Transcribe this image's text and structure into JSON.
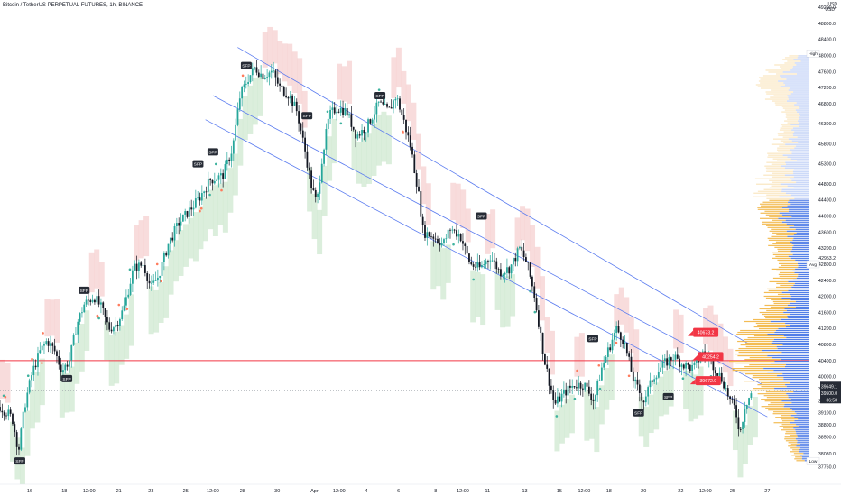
{
  "header": {
    "title": "Bitcoin / TetherUS PERPETUAL FUTURES, 1h, BINANCE",
    "currency_line1": "USD",
    "currency_line2": "USDT"
  },
  "chart_data": {
    "type": "candlestick",
    "symbol": "BTCUSDT.P",
    "exchange": "BINANCE",
    "timeframe": "1h",
    "xlim": [
      0,
      32.7
    ],
    "ylim": [
      37320,
      49380
    ],
    "y_ticks": [
      37760.0,
      38080.0,
      38500.0,
      38800.0,
      39100.0,
      39400.0,
      39700.0,
      40000.0,
      40400.0,
      40800.0,
      41200.0,
      41600.0,
      42000.0,
      42400.0,
      42800.0,
      43200.0,
      43600.0,
      44000.0,
      44400.0,
      44800.0,
      45300.0,
      45800.0,
      46300.0,
      46800.0,
      47200.0,
      47600.0,
      48000.0,
      48400.0,
      48800.0,
      49200.0
    ],
    "y_tick_labels": [
      "37760.0",
      "38080.0",
      "38500.0",
      "38800.0",
      "39100.0",
      "39400.0",
      "39700.0",
      "40000.0",
      "40400.0",
      "40800.0",
      "41200.0",
      "41600.0",
      "42000.0",
      "42400.0",
      "42800.0",
      "43200.0",
      "43600.0",
      "44000.0",
      "44400.0",
      "44800.0",
      "45300.0",
      "45800.0",
      "46300.0",
      "46800.0",
      "47200.0",
      "47600.0",
      "48000.0",
      "48400.0",
      "48800.0",
      "49200.0"
    ],
    "x_ticks": [
      {
        "x": 1.2,
        "label": "16"
      },
      {
        "x": 2.6,
        "label": "18"
      },
      {
        "x": 3.6,
        "label": "12:00"
      },
      {
        "x": 4.8,
        "label": "21"
      },
      {
        "x": 6.1,
        "label": "23"
      },
      {
        "x": 7.5,
        "label": "25"
      },
      {
        "x": 8.6,
        "label": "12:00"
      },
      {
        "x": 9.8,
        "label": "28"
      },
      {
        "x": 11.2,
        "label": "30"
      },
      {
        "x": 12.7,
        "label": "Apr"
      },
      {
        "x": 13.7,
        "label": "12:00"
      },
      {
        "x": 14.8,
        "label": "4"
      },
      {
        "x": 16.1,
        "label": "6"
      },
      {
        "x": 17.6,
        "label": "8"
      },
      {
        "x": 18.7,
        "label": "12:00"
      },
      {
        "x": 19.7,
        "label": "11"
      },
      {
        "x": 21.2,
        "label": "13"
      },
      {
        "x": 22.6,
        "label": "15"
      },
      {
        "x": 23.6,
        "label": "12:00"
      },
      {
        "x": 24.6,
        "label": "18"
      },
      {
        "x": 26.0,
        "label": "20"
      },
      {
        "x": 27.5,
        "label": "22"
      },
      {
        "x": 28.5,
        "label": "12:00"
      },
      {
        "x": 29.6,
        "label": "25"
      },
      {
        "x": 31.0,
        "label": "27"
      }
    ],
    "price_path": [
      [
        0.0,
        39250
      ],
      [
        0.3,
        39100
      ],
      [
        0.5,
        38950
      ],
      [
        0.75,
        38150
      ],
      [
        1.0,
        39300
      ],
      [
        1.3,
        40100
      ],
      [
        1.6,
        40600
      ],
      [
        1.9,
        40900
      ],
      [
        2.2,
        40650
      ],
      [
        2.5,
        40150
      ],
      [
        2.8,
        40400
      ],
      [
        3.1,
        41300
      ],
      [
        3.4,
        41800
      ],
      [
        3.8,
        42000
      ],
      [
        4.1,
        41700
      ],
      [
        4.4,
        41200
      ],
      [
        4.7,
        41300
      ],
      [
        5.0,
        41700
      ],
      [
        5.4,
        42700
      ],
      [
        5.8,
        42800
      ],
      [
        6.1,
        42200
      ],
      [
        6.4,
        42500
      ],
      [
        6.8,
        43300
      ],
      [
        7.2,
        43800
      ],
      [
        7.6,
        44100
      ],
      [
        8.0,
        44400
      ],
      [
        8.5,
        44900
      ],
      [
        9.0,
        45000
      ],
      [
        9.4,
        45700
      ],
      [
        9.7,
        47000
      ],
      [
        10.0,
        47400
      ],
      [
        10.3,
        47700
      ],
      [
        10.6,
        47500
      ],
      [
        11.0,
        47600
      ],
      [
        11.3,
        47200
      ],
      [
        11.7,
        47000
      ],
      [
        12.0,
        46600
      ],
      [
        12.3,
        45700
      ],
      [
        12.6,
        44700
      ],
      [
        12.8,
        44300
      ],
      [
        13.0,
        45400
      ],
      [
        13.3,
        46500
      ],
      [
        13.6,
        46700
      ],
      [
        14.0,
        46600
      ],
      [
        14.4,
        46000
      ],
      [
        14.8,
        46200
      ],
      [
        15.3,
        46800
      ],
      [
        15.7,
        46600
      ],
      [
        16.0,
        47000
      ],
      [
        16.3,
        46400
      ],
      [
        16.6,
        45700
      ],
      [
        16.9,
        44600
      ],
      [
        17.1,
        43600
      ],
      [
        17.5,
        43500
      ],
      [
        17.9,
        43300
      ],
      [
        18.2,
        43700
      ],
      [
        18.6,
        43500
      ],
      [
        19.0,
        42800
      ],
      [
        19.4,
        42700
      ],
      [
        19.8,
        43000
      ],
      [
        20.2,
        42600
      ],
      [
        20.6,
        42700
      ],
      [
        21.0,
        43200
      ],
      [
        21.3,
        42800
      ],
      [
        21.6,
        42000
      ],
      [
        22.0,
        40400
      ],
      [
        22.4,
        39300
      ],
      [
        22.8,
        39600
      ],
      [
        23.2,
        39800
      ],
      [
        23.6,
        39800
      ],
      [
        24.0,
        39400
      ],
      [
        24.3,
        40200
      ],
      [
        24.6,
        40700
      ],
      [
        24.9,
        41200
      ],
      [
        25.2,
        40900
      ],
      [
        25.6,
        39900
      ],
      [
        26.0,
        39400
      ],
      [
        26.4,
        40000
      ],
      [
        26.8,
        40300
      ],
      [
        27.2,
        40500
      ],
      [
        27.6,
        40300
      ],
      [
        28.0,
        40200
      ],
      [
        28.4,
        40600
      ],
      [
        28.8,
        40300
      ],
      [
        29.2,
        39900
      ],
      [
        29.5,
        39400
      ],
      [
        29.7,
        39200
      ],
      [
        29.9,
        38600
      ],
      [
        30.1,
        39300
      ],
      [
        30.4,
        39649
      ]
    ],
    "current_price": 39649.1,
    "current_price_label": "39649.1",
    "secondary_price_label": "39500.0",
    "countdown_label": "36:58",
    "horizontal_level": {
      "price": 40400,
      "color": "#f23645"
    },
    "regression_channel": {
      "color": "#5b7cf0",
      "lines": [
        {
          "from": [
            9.6,
            48200
          ],
          "to": [
            30.3,
            40800
          ]
        },
        {
          "from": [
            8.6,
            47000
          ],
          "to": [
            30.8,
            39800
          ]
        },
        {
          "from": [
            8.3,
            46400
          ],
          "to": [
            31.0,
            39000
          ]
        }
      ]
    },
    "sfp_labels": [
      {
        "x": 0.8,
        "price": 37900,
        "text": "SFP"
      },
      {
        "x": 3.4,
        "price": 42150,
        "text": "SFP"
      },
      {
        "x": 2.7,
        "price": 39950,
        "text": "SFP"
      },
      {
        "x": 9.95,
        "price": 47750,
        "text": "SFP"
      },
      {
        "x": 12.4,
        "price": 46500,
        "text": "SFP"
      },
      {
        "x": 15.35,
        "price": 47000,
        "text": "SFP"
      },
      {
        "x": 8.0,
        "price": 45300,
        "text": "SFP"
      },
      {
        "x": 8.6,
        "price": 45600,
        "text": "SFP"
      },
      {
        "x": 19.45,
        "price": 44000,
        "text": "SFP"
      },
      {
        "x": 23.95,
        "price": 40950,
        "text": "SFP"
      },
      {
        "x": 25.8,
        "price": 39100,
        "text": "SFP"
      },
      {
        "x": 27.0,
        "price": 39500,
        "text": "SFP"
      }
    ],
    "callouts": [
      {
        "x": 28.0,
        "price": 41100,
        "text": "40673.2"
      },
      {
        "x": 28.2,
        "price": 40500,
        "text": "40254.2"
      },
      {
        "x": 28.1,
        "price": 39900,
        "text": "39672.9"
      }
    ],
    "right_labels": [
      {
        "price": 48050,
        "text": "High"
      },
      {
        "price": 42800,
        "text": "Avg"
      },
      {
        "price": 37900,
        "text": "Low"
      }
    ],
    "avg_price_label": "42953.2",
    "colors": {
      "up": "#26a69a",
      "down": "#131722",
      "support_band": "#cfe8d0",
      "resistance_band": "#f6d0d0",
      "profile_buy": "#f2b84b",
      "profile_sell": "#4a78e6",
      "label_red": "#f23645",
      "sfp_bg": "#262b35"
    }
  }
}
